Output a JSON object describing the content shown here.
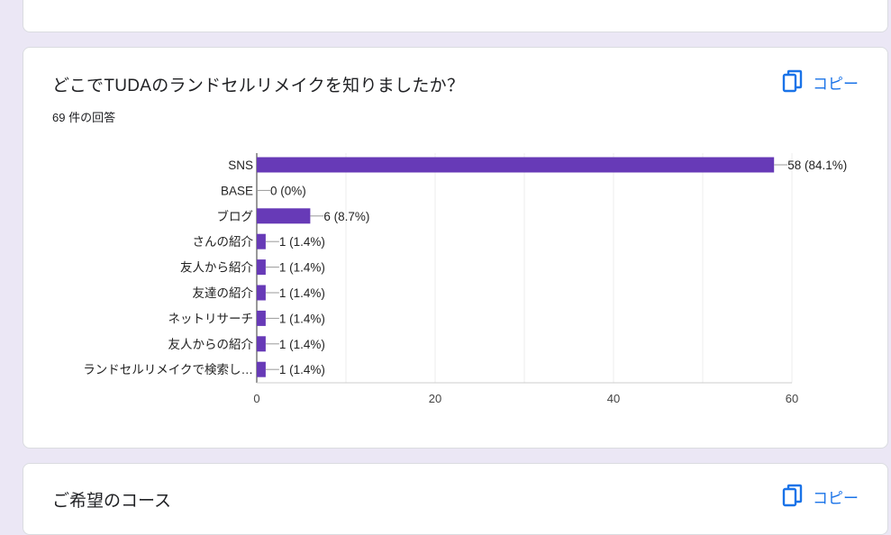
{
  "question": {
    "title": "どこでTUDAのランドセルリメイクを知りましたか？",
    "response_count": "69 件の回答",
    "copy_label": "コピー"
  },
  "next_question": {
    "title": "ご希望のコース",
    "copy_label": "コピー"
  },
  "colors": {
    "bar": "#673ab7",
    "accent": "#1a73e8",
    "background": "#ebe7f5"
  },
  "chart_data": {
    "type": "bar",
    "orientation": "horizontal",
    "categories": [
      "SNS",
      "BASE",
      "ブログ",
      "さんの紹介",
      "友人から紹介",
      "友達の紹介",
      "ネットリサーチ",
      "友人からの紹介",
      "ランドセルリメイクで検索し…"
    ],
    "values": [
      58,
      0,
      6,
      1,
      1,
      1,
      1,
      1,
      1
    ],
    "value_labels": [
      "58 (84.1%)",
      "0 (0%)",
      "6 (8.7%)",
      "1 (1.4%)",
      "1 (1.4%)",
      "1 (1.4%)",
      "1 (1.4%)",
      "1 (1.4%)",
      "1 (1.4%)"
    ],
    "xlim": [
      0,
      60
    ],
    "xticks": [
      0,
      20,
      40,
      60
    ],
    "grid": true
  }
}
